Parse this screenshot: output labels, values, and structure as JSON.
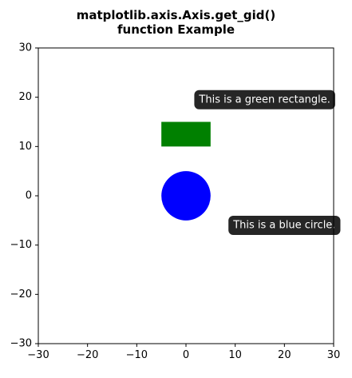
{
  "chart_data": {
    "type": "scatter",
    "title_lines": [
      "matplotlib.axis.Axis.get_gid()",
      "function Example"
    ],
    "xlim": [
      -30,
      30
    ],
    "ylim": [
      -30,
      30
    ],
    "xticks": [
      -30,
      -20,
      -10,
      0,
      10,
      20,
      30
    ],
    "yticks": [
      -30,
      -20,
      -10,
      0,
      10,
      20,
      30
    ],
    "xtick_labels": [
      "−30",
      "−20",
      "−10",
      "0",
      "10",
      "20",
      "30"
    ],
    "ytick_labels": [
      "−30",
      "−20",
      "−10",
      "0",
      "10",
      "20",
      "30"
    ],
    "grid": false,
    "shapes": [
      {
        "name": "green-rectangle",
        "kind": "rectangle",
        "x": -5,
        "y": 10,
        "width": 10,
        "height": 5,
        "color": "#008000"
      },
      {
        "name": "blue-circle",
        "kind": "circle",
        "cx": 0,
        "cy": 0,
        "r": 5,
        "color": "#0000ff"
      }
    ],
    "annotations": [
      {
        "name": "green-rectangle-annotation",
        "text": "This is a green rectangle.",
        "x": 16,
        "y": 19.5,
        "box_color": "#262626",
        "text_color": "#ffffff"
      },
      {
        "name": "blue-circle-annotation",
        "text": "This is a blue circle.",
        "x": 20,
        "y": -6,
        "box_color": "#262626",
        "text_color": "#ffffff"
      }
    ]
  }
}
